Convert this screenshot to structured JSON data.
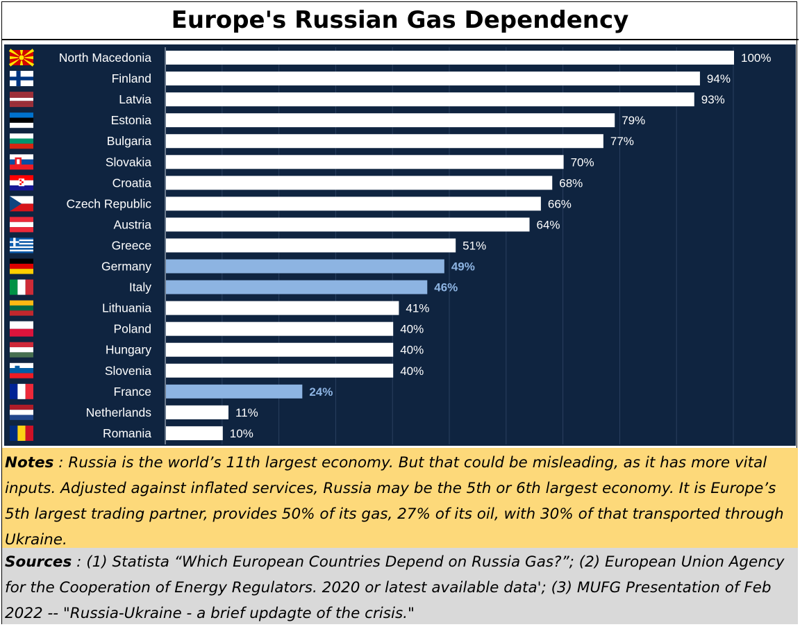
{
  "title": "Europe's Russian  Gas Dependency",
  "chart_data": {
    "type": "bar",
    "orientation": "horizontal",
    "categories": [
      "North Macedonia",
      "Finland",
      "Latvia",
      "Estonia",
      "Bulgaria",
      "Slovakia",
      "Croatia",
      "Czech Republic",
      "Austria",
      "Greece",
      "Germany",
      "Italy",
      "Lithuania",
      "Poland",
      "Hungary",
      "Slovenia",
      "France",
      "Netherlands",
      "Romania"
    ],
    "values": [
      100,
      94,
      93,
      79,
      77,
      70,
      68,
      66,
      64,
      51,
      49,
      46,
      41,
      40,
      40,
      40,
      24,
      11,
      10
    ],
    "value_labels": [
      "100%",
      "94%",
      "93%",
      "79%",
      "77%",
      "70%",
      "68%",
      "66%",
      "64%",
      "51%",
      "49%",
      "46%",
      "41%",
      "40%",
      "40%",
      "40%",
      "24%",
      "11%",
      "10%"
    ],
    "highlighted": [
      "Germany",
      "Italy",
      "France"
    ],
    "xlim": [
      0,
      100
    ],
    "grid": true,
    "colors": {
      "background": "#0f2440",
      "bar": "#ffffff",
      "highlight": "#8db4e2",
      "label": "#ffffff",
      "grid": "#2a4060"
    },
    "flag_icons": [
      "north-macedonia-flag-icon",
      "finland-flag-icon",
      "latvia-flag-icon",
      "estonia-flag-icon",
      "bulgaria-flag-icon",
      "slovakia-flag-icon",
      "croatia-flag-icon",
      "czech-republic-flag-icon",
      "austria-flag-icon",
      "greece-flag-icon",
      "germany-flag-icon",
      "italy-flag-icon",
      "lithuania-flag-icon",
      "poland-flag-icon",
      "hungary-flag-icon",
      "slovenia-flag-icon",
      "france-flag-icon",
      "netherlands-flag-icon",
      "romania-flag-icon"
    ]
  },
  "notes": {
    "label": "Notes",
    "text": " : Russia is the world’s 11th largest economy.  But that could be misleading, as it has more vital inputs.  Adjusted against inflated services, Russia may be the 5th or 6th largest economy. It is Europe’s 5th largest trading partner, provides 50% of its  gas, 27% of its oil, with 30% of that transported through Ukraine."
  },
  "sources": {
    "label": "Sources",
    "text": " : (1) Statista “Which European Countries Depend on Russia Gas?”;  (2) European Union Agency for the Cooperation of Energy Regulators. 2020 or latest available data'; (3) MUFG Presentation of Feb 2022 -- \"Russia-Ukraine - a brief updagte of the crisis.\""
  }
}
